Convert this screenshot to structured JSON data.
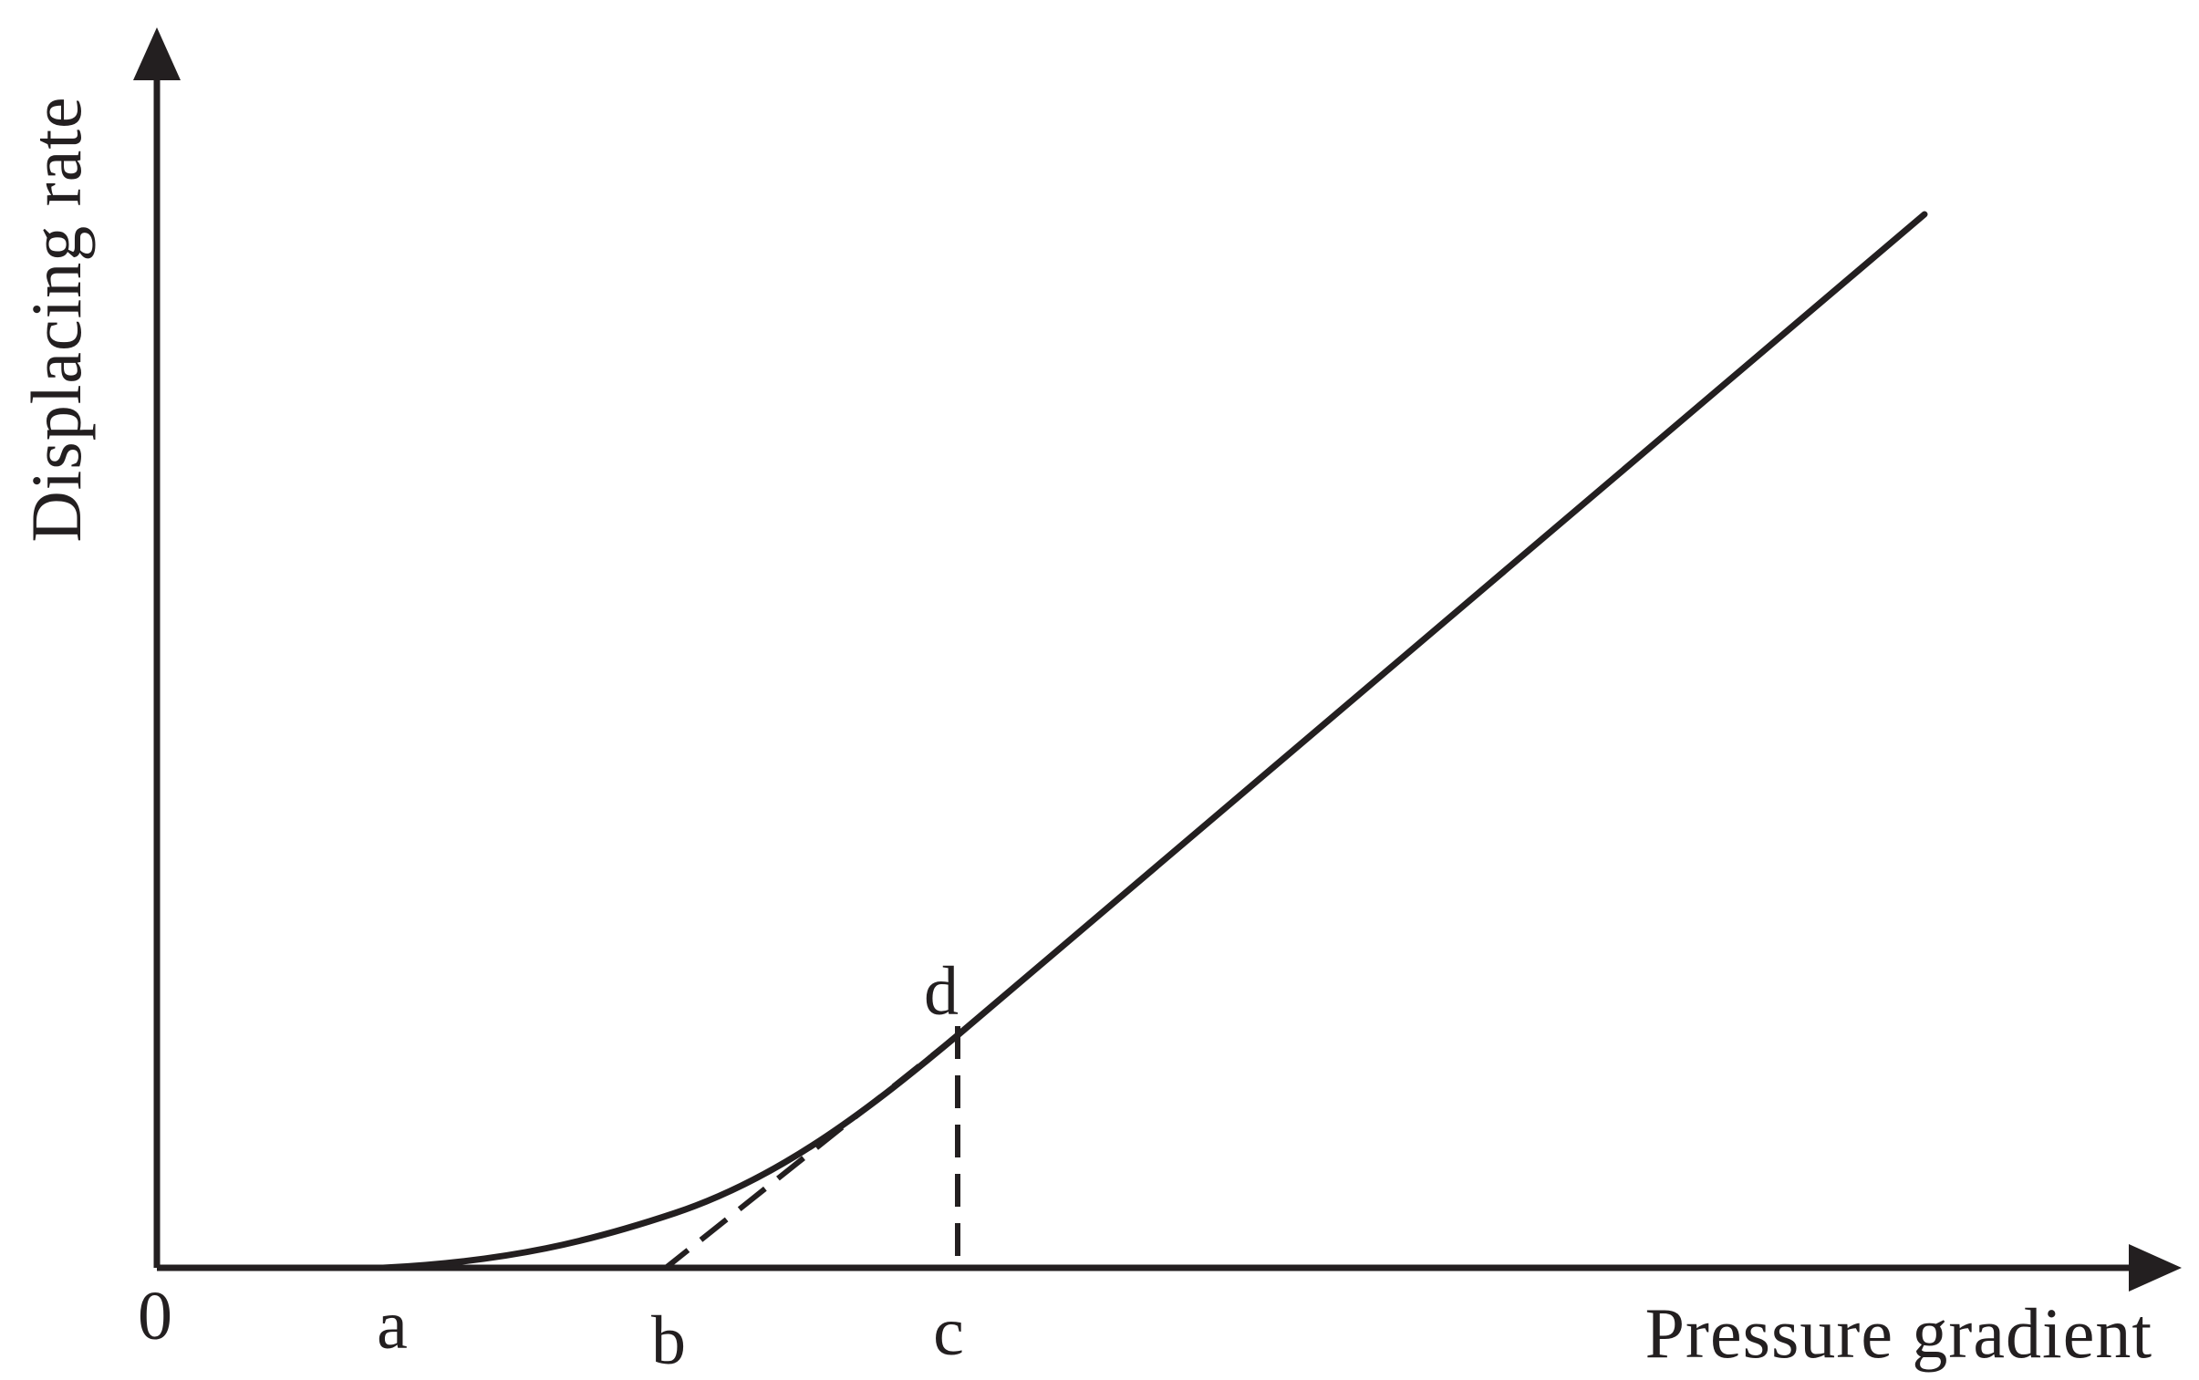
{
  "axes": {
    "x_label": "Pressure gradient",
    "y_label": "Displacing rate",
    "origin_label": "0"
  },
  "points": {
    "a": "a",
    "b": "b",
    "c": "c",
    "d": "d"
  },
  "colors": {
    "ink": "#231f20",
    "background": "#ffffff"
  }
}
